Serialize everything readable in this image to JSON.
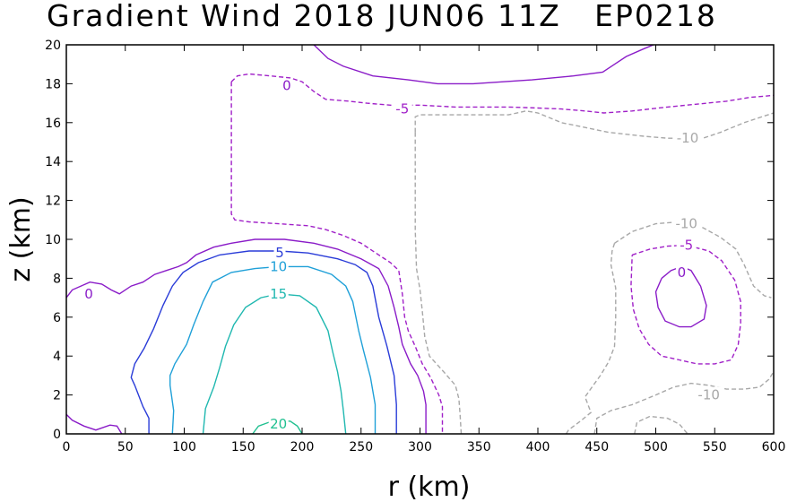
{
  "chart_data": {
    "type": "contour",
    "title": "Gradient Wind 2018 JUN06 11Z   EP0218",
    "xlabel": "r (km)",
    "ylabel": "z (km)",
    "xlim": [
      0,
      600
    ],
    "ylim": [
      0,
      20
    ],
    "xticks": [
      0,
      50,
      100,
      150,
      200,
      250,
      300,
      350,
      400,
      450,
      500,
      550,
      600
    ],
    "yticks": [
      0,
      2,
      4,
      6,
      8,
      10,
      12,
      14,
      16,
      18,
      20
    ],
    "grid": false,
    "contour_levels": [
      -10,
      -5,
      0,
      5,
      10,
      15,
      20
    ],
    "colors": {
      "20": "#20c090",
      "15": "#20b8b0",
      "10": "#1fa0d8",
      "5": "#2a3cd8",
      "0": "#8a1cc8",
      "-5": "#a020c8",
      "-10": "#a8a8a8"
    },
    "contours": [
      {
        "level": 0,
        "label": "0",
        "dash": false,
        "label_at": [
          19,
          7.2
        ],
        "points": [
          [
            0,
            7.0
          ],
          [
            5,
            7.4
          ],
          [
            20,
            7.8
          ],
          [
            30,
            7.7
          ],
          [
            38,
            7.4
          ],
          [
            45,
            7.2
          ],
          [
            55,
            7.6
          ],
          [
            65,
            7.8
          ],
          [
            75,
            8.2
          ],
          [
            85,
            8.4
          ],
          [
            95,
            8.6
          ],
          [
            102,
            8.8
          ],
          [
            110,
            9.2
          ],
          [
            125,
            9.6
          ],
          [
            140,
            9.8
          ],
          [
            160,
            10
          ],
          [
            185,
            10
          ],
          [
            210,
            9.8
          ],
          [
            230,
            9.5
          ],
          [
            250,
            9.0
          ],
          [
            265,
            8.5
          ],
          [
            273,
            7.6
          ],
          [
            278,
            6.5
          ],
          [
            282,
            5.5
          ],
          [
            285,
            4.6
          ],
          [
            292,
            3.6
          ],
          [
            298,
            3.0
          ],
          [
            303,
            2.2
          ],
          [
            305,
            1.5
          ],
          [
            305,
            0
          ]
        ]
      },
      {
        "level": 0,
        "label": "0",
        "dash": false,
        "label_at": [
          187,
          17.9
        ],
        "points": [
          [
            210,
            20
          ],
          [
            222,
            19.3
          ],
          [
            235,
            18.9
          ],
          [
            260,
            18.4
          ],
          [
            290,
            18.2
          ],
          [
            315,
            18.0
          ],
          [
            345,
            18.0
          ],
          [
            395,
            18.2
          ],
          [
            430,
            18.4
          ],
          [
            455,
            18.6
          ],
          [
            465,
            19.0
          ],
          [
            475,
            19.4
          ],
          [
            490,
            19.8
          ],
          [
            498,
            20
          ]
        ]
      },
      {
        "level": 0,
        "label": "0",
        "dash": false,
        "label_at": [
          522,
          8.3
        ],
        "points": [
          [
            505,
            8.0
          ],
          [
            513,
            8.4
          ],
          [
            522,
            8.6
          ],
          [
            530,
            8.4
          ],
          [
            538,
            7.6
          ],
          [
            543,
            6.6
          ],
          [
            541,
            5.9
          ],
          [
            530,
            5.5
          ],
          [
            520,
            5.5
          ],
          [
            508,
            5.8
          ],
          [
            502,
            6.5
          ],
          [
            500,
            7.3
          ],
          [
            505,
            8.0
          ]
        ]
      },
      {
        "level": 0,
        "label": "",
        "dash": false,
        "label_at": null,
        "points": [
          [
            0,
            1.0
          ],
          [
            5,
            0.7
          ],
          [
            15,
            0.4
          ],
          [
            25,
            0.2
          ],
          [
            37,
            0.45
          ],
          [
            43,
            0.4
          ],
          [
            47,
            0
          ]
        ]
      },
      {
        "level": 5,
        "label": "5",
        "dash": false,
        "label_at": [
          181,
          9.3
        ],
        "points": [
          [
            70,
            0
          ],
          [
            70,
            0.8
          ],
          [
            65,
            1.4
          ],
          [
            58,
            2.5
          ],
          [
            55,
            2.9
          ],
          [
            58,
            3.6
          ],
          [
            66,
            4.4
          ],
          [
            74,
            5.4
          ],
          [
            82,
            6.6
          ],
          [
            90,
            7.6
          ],
          [
            99,
            8.3
          ],
          [
            112,
            8.8
          ],
          [
            130,
            9.2
          ],
          [
            155,
            9.4
          ],
          [
            181,
            9.4
          ],
          [
            205,
            9.3
          ],
          [
            230,
            9.0
          ],
          [
            245,
            8.7
          ],
          [
            255,
            8.3
          ],
          [
            260,
            7.6
          ],
          [
            265,
            6.0
          ],
          [
            272,
            4.5
          ],
          [
            278,
            3.0
          ],
          [
            280,
            1.5
          ],
          [
            280,
            0
          ]
        ]
      },
      {
        "level": 10,
        "label": "10",
        "dash": false,
        "label_at": [
          180,
          8.6
        ],
        "points": [
          [
            90,
            0
          ],
          [
            91,
            1.2
          ],
          [
            88,
            2.5
          ],
          [
            88,
            3.0
          ],
          [
            92,
            3.6
          ],
          [
            102,
            4.6
          ],
          [
            108,
            5.6
          ],
          [
            116,
            6.8
          ],
          [
            124,
            7.8
          ],
          [
            140,
            8.3
          ],
          [
            160,
            8.5
          ],
          [
            180,
            8.6
          ],
          [
            205,
            8.6
          ],
          [
            225,
            8.2
          ],
          [
            237,
            7.6
          ],
          [
            243,
            6.8
          ],
          [
            248,
            5.3
          ],
          [
            252,
            4.3
          ],
          [
            258,
            2.9
          ],
          [
            262,
            1.5
          ],
          [
            262,
            0
          ]
        ]
      },
      {
        "level": 15,
        "label": "15",
        "dash": false,
        "label_at": [
          180,
          7.2
        ],
        "points": [
          [
            116,
            0
          ],
          [
            118,
            1.3
          ],
          [
            125,
            2.4
          ],
          [
            130,
            3.4
          ],
          [
            135,
            4.5
          ],
          [
            142,
            5.6
          ],
          [
            152,
            6.5
          ],
          [
            165,
            7.0
          ],
          [
            180,
            7.2
          ],
          [
            198,
            7.1
          ],
          [
            212,
            6.5
          ],
          [
            222,
            5.3
          ],
          [
            226,
            4.2
          ],
          [
            230,
            3.2
          ],
          [
            233,
            2.2
          ],
          [
            235,
            1.2
          ],
          [
            237,
            0
          ]
        ]
      },
      {
        "level": 20,
        "label": "20",
        "dash": false,
        "label_at": [
          180,
          0.5
        ],
        "points": [
          [
            158,
            0
          ],
          [
            163,
            0.4
          ],
          [
            172,
            0.6
          ],
          [
            180,
            0.7
          ],
          [
            190,
            0.65
          ],
          [
            196,
            0.4
          ],
          [
            200,
            0
          ]
        ]
      },
      {
        "level": -5,
        "label": "-5",
        "dash": true,
        "label_at": [
          285,
          16.7
        ],
        "points": [
          [
            140,
            18.1
          ],
          [
            145,
            18.4
          ],
          [
            155,
            18.5
          ],
          [
            173,
            18.4
          ],
          [
            190,
            18.3
          ],
          [
            200,
            18.1
          ],
          [
            210,
            17.6
          ],
          [
            220,
            17.2
          ],
          [
            240,
            17.1
          ],
          [
            255,
            17.0
          ],
          [
            275,
            16.9
          ],
          [
            300,
            16.9
          ],
          [
            330,
            16.8
          ],
          [
            350,
            16.8
          ],
          [
            375,
            16.8
          ],
          [
            400,
            16.75
          ],
          [
            420,
            16.7
          ],
          [
            440,
            16.6
          ],
          [
            456,
            16.5
          ],
          [
            480,
            16.6
          ],
          [
            510,
            16.8
          ],
          [
            560,
            17.1
          ],
          [
            580,
            17.3
          ],
          [
            600,
            17.4
          ]
        ]
      },
      {
        "level": -5,
        "label": "",
        "dash": true,
        "label_at": null,
        "points": [
          [
            140,
            18.1
          ],
          [
            140,
            17.5
          ],
          [
            140,
            16.0
          ],
          [
            140,
            14.0
          ],
          [
            140,
            12.5
          ],
          [
            140,
            11.3
          ],
          [
            143,
            11.0
          ],
          [
            155,
            10.9
          ],
          [
            180,
            10.8
          ],
          [
            205,
            10.7
          ],
          [
            220,
            10.5
          ],
          [
            235,
            10.2
          ],
          [
            250,
            9.8
          ],
          [
            265,
            9.2
          ],
          [
            275,
            8.8
          ],
          [
            282,
            8.4
          ],
          [
            285,
            7.2
          ],
          [
            287,
            6.0
          ],
          [
            290,
            5.3
          ],
          [
            296,
            4.5
          ],
          [
            302,
            3.6
          ],
          [
            309,
            2.9
          ],
          [
            316,
            2.0
          ],
          [
            319,
            1.4
          ],
          [
            319,
            0
          ]
        ]
      },
      {
        "level": -5,
        "label": "-5",
        "dash": true,
        "label_at": [
          526,
          9.7
        ],
        "points": [
          [
            480,
            9.2
          ],
          [
            495,
            9.5
          ],
          [
            510,
            9.65
          ],
          [
            526,
            9.7
          ],
          [
            545,
            9.4
          ],
          [
            556,
            8.9
          ],
          [
            567,
            7.9
          ],
          [
            572,
            6.8
          ],
          [
            572,
            5.7
          ],
          [
            570,
            4.6
          ],
          [
            564,
            3.8
          ],
          [
            550,
            3.6
          ],
          [
            535,
            3.6
          ],
          [
            520,
            3.8
          ],
          [
            505,
            4.0
          ],
          [
            494,
            4.6
          ],
          [
            486,
            5.4
          ],
          [
            481,
            6.4
          ],
          [
            479,
            7.6
          ],
          [
            480,
            9.2
          ]
        ]
      },
      {
        "level": -10,
        "label": "-10",
        "dash": true,
        "label_at": [
          527,
          15.2
        ],
        "points": [
          [
            296,
            15.5
          ],
          [
            296,
            16.3
          ],
          [
            300,
            16.4
          ],
          [
            320,
            16.4
          ],
          [
            350,
            16.4
          ],
          [
            375,
            16.4
          ],
          [
            390,
            16.6
          ],
          [
            400,
            16.5
          ],
          [
            420,
            16.0
          ],
          [
            460,
            15.5
          ],
          [
            490,
            15.3
          ],
          [
            510,
            15.2
          ],
          [
            540,
            15.2
          ],
          [
            555,
            15.5
          ],
          [
            575,
            16.0
          ],
          [
            600,
            16.5
          ]
        ]
      },
      {
        "level": -10,
        "label": "",
        "dash": true,
        "label_at": null,
        "points": [
          [
            296,
            15.5
          ],
          [
            296,
            13.0
          ],
          [
            296,
            10.5
          ],
          [
            297,
            8.5
          ],
          [
            300,
            7.4
          ],
          [
            302,
            6.3
          ],
          [
            304,
            5.0
          ],
          [
            308,
            4.0
          ],
          [
            320,
            3.2
          ],
          [
            330,
            2.5
          ],
          [
            333,
            1.8
          ],
          [
            334,
            1.0
          ],
          [
            335,
            0
          ]
        ]
      },
      {
        "level": -10,
        "label": "-10",
        "dash": true,
        "label_at": [
          526,
          10.8
        ],
        "points": [
          [
            465,
            9.8
          ],
          [
            480,
            10.4
          ],
          [
            500,
            10.8
          ],
          [
            520,
            10.9
          ],
          [
            540,
            10.6
          ],
          [
            555,
            10.1
          ],
          [
            568,
            9.5
          ],
          [
            575,
            8.7
          ],
          [
            583,
            7.6
          ],
          [
            592,
            7.1
          ],
          [
            598,
            7.0
          ]
        ]
      },
      {
        "level": -10,
        "label": "",
        "dash": true,
        "label_at": null,
        "points": [
          [
            465,
            9.8
          ],
          [
            463,
            9.4
          ],
          [
            462,
            8.7
          ],
          [
            466,
            7.5
          ],
          [
            466,
            6.0
          ],
          [
            465,
            4.5
          ],
          [
            460,
            3.7
          ],
          [
            453,
            3.0
          ],
          [
            447,
            2.5
          ],
          [
            440,
            1.9
          ],
          [
            445,
            1.1
          ],
          [
            437,
            0.7
          ],
          [
            426,
            0.2
          ],
          [
            424,
            0
          ]
        ]
      },
      {
        "level": -10,
        "label": "-10",
        "dash": true,
        "label_at": [
          545,
          2.0
        ],
        "points": [
          [
            448,
            0
          ],
          [
            450,
            0.8
          ],
          [
            462,
            1.2
          ],
          [
            480,
            1.5
          ],
          [
            500,
            2.0
          ],
          [
            515,
            2.4
          ],
          [
            530,
            2.6
          ],
          [
            545,
            2.5
          ],
          [
            560,
            2.3
          ],
          [
            575,
            2.3
          ],
          [
            588,
            2.4
          ],
          [
            596,
            2.8
          ],
          [
            600,
            3.2
          ]
        ]
      },
      {
        "level": -10,
        "label": "",
        "dash": true,
        "label_at": null,
        "points": [
          [
            482,
            0
          ],
          [
            484,
            0.6
          ],
          [
            495,
            0.9
          ],
          [
            510,
            0.8
          ],
          [
            520,
            0.5
          ],
          [
            527,
            0
          ]
        ]
      }
    ]
  }
}
